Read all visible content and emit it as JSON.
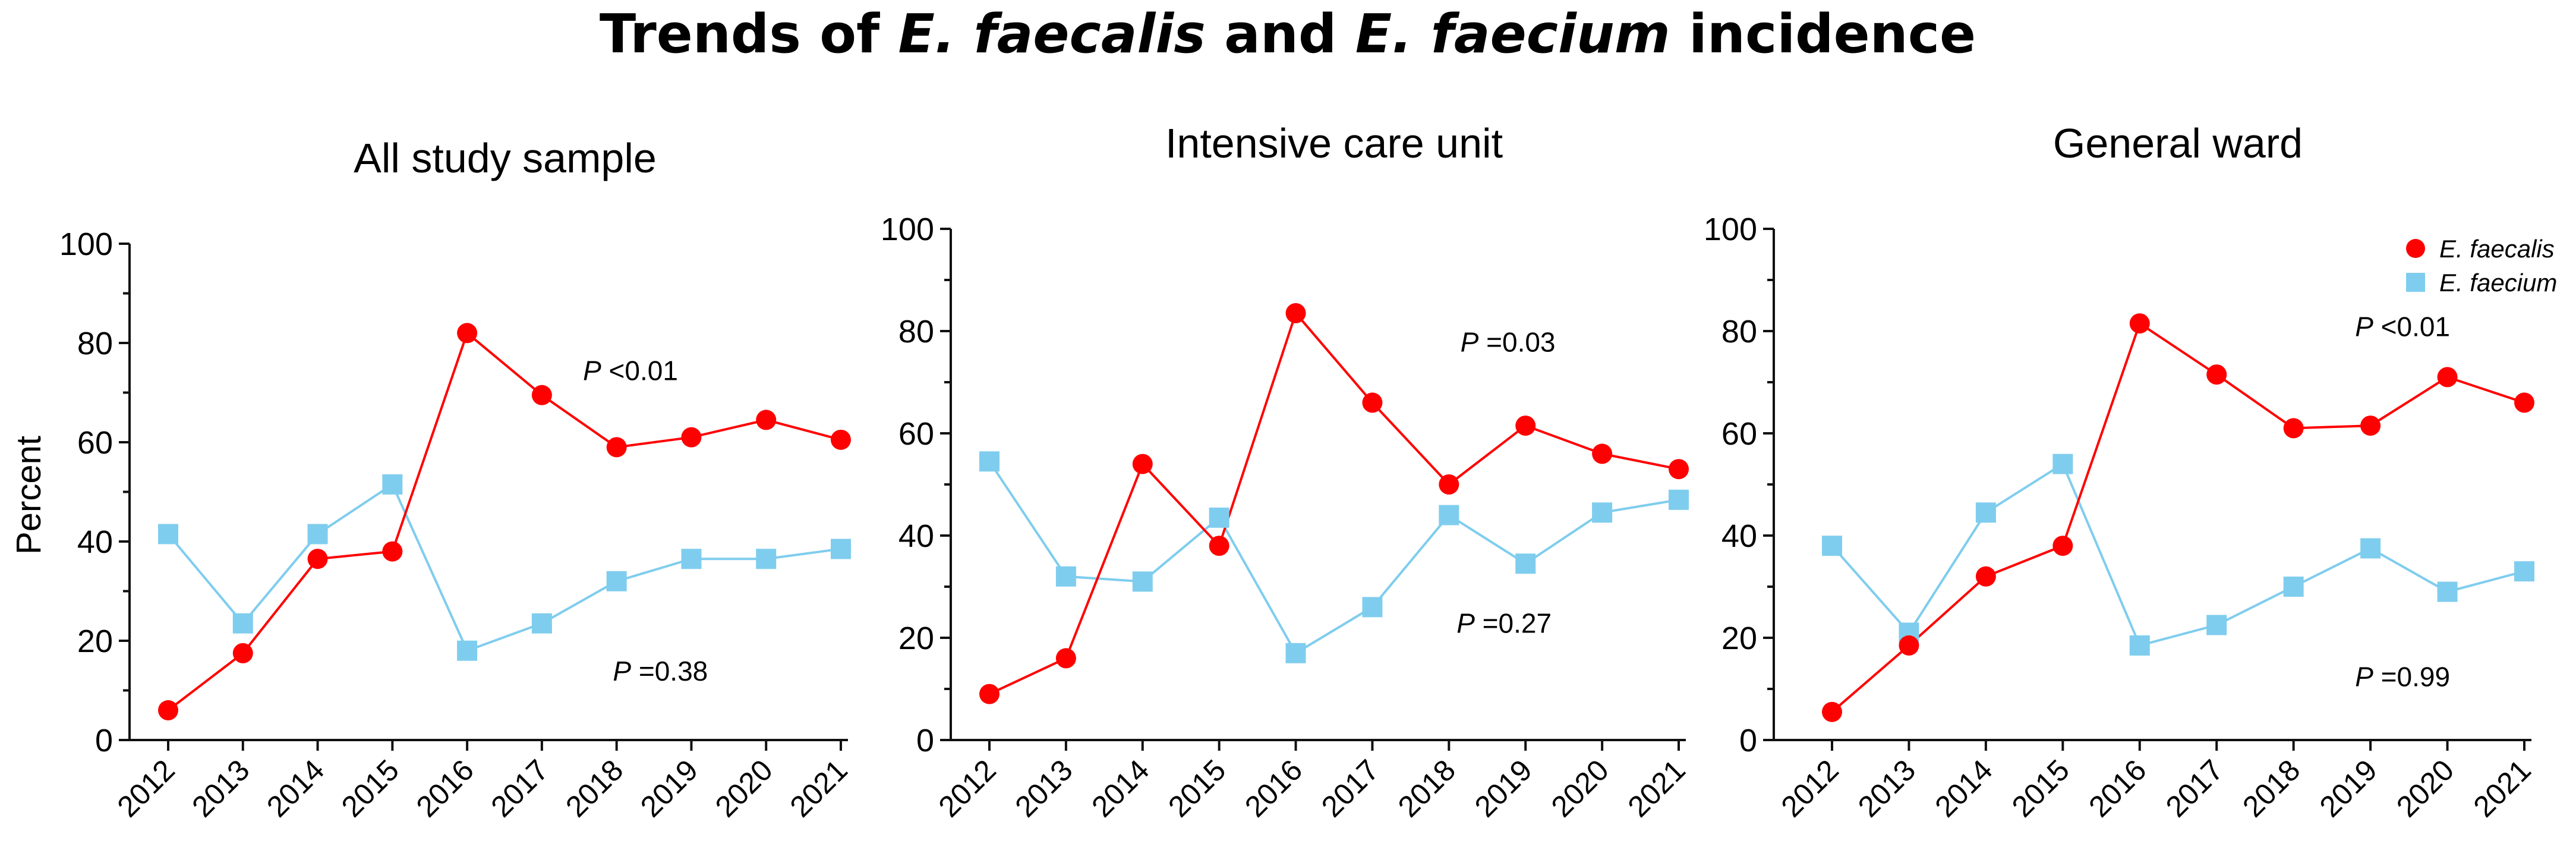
{
  "figure_title": {
    "p1": "Trends of ",
    "p2": "E. faecalis",
    "p3": " and ",
    "p4": "E. faecium",
    "p5": " incidence"
  },
  "y_axis_label": "Percent",
  "legend": [
    {
      "label": "E. faecalis",
      "color": "#ff0000",
      "marker": "circle"
    },
    {
      "label": "E. faecium",
      "color": "#7fcdee",
      "marker": "square"
    }
  ],
  "chart_data": [
    {
      "type": "line",
      "title": "All study sample",
      "categories": [
        "2012",
        "2013",
        "2014",
        "2015",
        "2016",
        "2017",
        "2018",
        "2019",
        "2020",
        "2021"
      ],
      "ylim": [
        0,
        100
      ],
      "yticks": [
        0,
        20,
        40,
        60,
        80,
        100
      ],
      "ylabel": "Percent",
      "series": [
        {
          "name": "E. faecalis",
          "color": "#ff0000",
          "marker": "circle",
          "values": [
            6,
            17.5,
            36.5,
            38,
            82,
            69.5,
            59,
            61,
            64.5,
            60.5
          ]
        },
        {
          "name": "E. faecium",
          "color": "#7fcdee",
          "marker": "square",
          "values": [
            41.5,
            23.5,
            41.5,
            51.5,
            18,
            23.5,
            32,
            36.5,
            36.5,
            38.5
          ]
        }
      ],
      "annotations": [
        {
          "italic": "P",
          "text": " <0.01",
          "series": "E. faecalis",
          "x": 5.55,
          "y": 72.5
        },
        {
          "italic": "P",
          "text": " =0.38",
          "series": "E. faecium",
          "x": 5.95,
          "y": 12
        }
      ]
    },
    {
      "type": "line",
      "title": "Intensive care unit",
      "categories": [
        "2012",
        "2013",
        "2014",
        "2015",
        "2016",
        "2017",
        "2018",
        "2019",
        "2020",
        "2021"
      ],
      "ylim": [
        0,
        100
      ],
      "yticks": [
        0,
        20,
        40,
        60,
        80,
        100
      ],
      "ylabel": "",
      "series": [
        {
          "name": "E. faecalis",
          "color": "#ff0000",
          "marker": "circle",
          "values": [
            9,
            16,
            54,
            38,
            83.5,
            66,
            50,
            61.5,
            56,
            53
          ]
        },
        {
          "name": "E. faecium",
          "color": "#7fcdee",
          "marker": "square",
          "values": [
            54.5,
            32,
            31,
            43.5,
            17,
            26,
            44,
            34.5,
            44.5,
            47
          ]
        }
      ],
      "annotations": [
        {
          "italic": "P",
          "text": " =0.03",
          "series": "E. faecalis",
          "x": 6.15,
          "y": 76
        },
        {
          "italic": "P",
          "text": " =0.27",
          "series": "E. faecium",
          "x": 6.1,
          "y": 21
        }
      ]
    },
    {
      "type": "line",
      "title": "General ward",
      "categories": [
        "2012",
        "2013",
        "2014",
        "2015",
        "2016",
        "2017",
        "2018",
        "2019",
        "2020",
        "2021"
      ],
      "ylim": [
        0,
        100
      ],
      "yticks": [
        0,
        20,
        40,
        60,
        80,
        100
      ],
      "ylabel": "",
      "series": [
        {
          "name": "E. faecalis",
          "color": "#ff0000",
          "marker": "circle",
          "values": [
            5.5,
            18.5,
            32,
            38,
            81.5,
            71.5,
            61,
            61.5,
            71,
            66
          ]
        },
        {
          "name": "E. faecium",
          "color": "#7fcdee",
          "marker": "square",
          "values": [
            38,
            21,
            44.5,
            54,
            18.5,
            22.5,
            30,
            37.5,
            29,
            33
          ]
        }
      ],
      "annotations": [
        {
          "italic": "P",
          "text": " <0.01",
          "series": "E. faecalis",
          "x": 6.8,
          "y": 79
        },
        {
          "italic": "P",
          "text": " =0.99",
          "series": "E. faecium",
          "x": 6.8,
          "y": 10.5
        }
      ]
    }
  ]
}
